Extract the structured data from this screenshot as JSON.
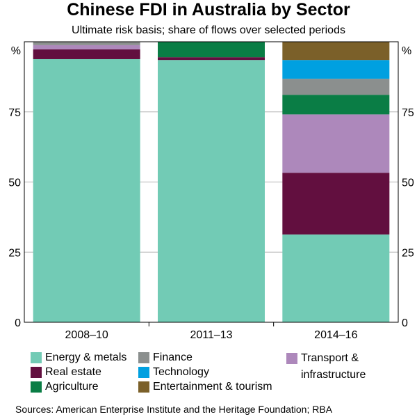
{
  "chart_data": {
    "type": "stacked-bar",
    "title": "Chinese FDI in Australia by Sector",
    "subtitle": "Ultimate risk basis; share of flows over selected periods",
    "ylabel_left": "%",
    "ylabel_right": "%",
    "ylim": [
      0,
      100
    ],
    "yticks": [
      0,
      25,
      50,
      75
    ],
    "grid": true,
    "legend_placement": "bottom",
    "categories": [
      "2008–10",
      "2011–13",
      "2014–16"
    ],
    "series": [
      {
        "name": "Energy & metals",
        "color": "#72cbb5",
        "values": [
          93.8,
          93.5,
          31.3
        ]
      },
      {
        "name": "Real estate",
        "color": "#620f3f",
        "values": [
          3.5,
          1.0,
          22.0
        ]
      },
      {
        "name": "Transport & infrastructure",
        "color": "#ad88bb",
        "values": [
          1.5,
          0,
          20.8
        ]
      },
      {
        "name": "Agriculture",
        "color": "#0a7d45",
        "values": [
          0,
          5.5,
          7.0
        ]
      },
      {
        "name": "Finance",
        "color": "#8b8f8e",
        "values": [
          1.2,
          0,
          5.7
        ]
      },
      {
        "name": "Technology",
        "color": "#00a0e0",
        "values": [
          0,
          0,
          6.7
        ]
      },
      {
        "name": "Entertainment & tourism",
        "color": "#7b6029",
        "values": [
          0,
          0,
          6.5
        ]
      }
    ],
    "legend": [
      {
        "label": "Energy & metals",
        "color": "#72cbb5"
      },
      {
        "label": "Real estate",
        "color": "#620f3f"
      },
      {
        "label": "Agriculture",
        "color": "#0a7d45"
      },
      {
        "label": "Finance",
        "color": "#8b8f8e"
      },
      {
        "label": "Technology",
        "color": "#00a0e0"
      },
      {
        "label": "Entertainment & tourism",
        "color": "#7b6029"
      },
      {
        "label": "Transport & infrastructure",
        "line1": "Transport &",
        "line2": "infrastructure",
        "color": "#ad88bb"
      }
    ]
  },
  "source": "Sources: American Enterprise Institute and the Heritage Foundation; RBA"
}
